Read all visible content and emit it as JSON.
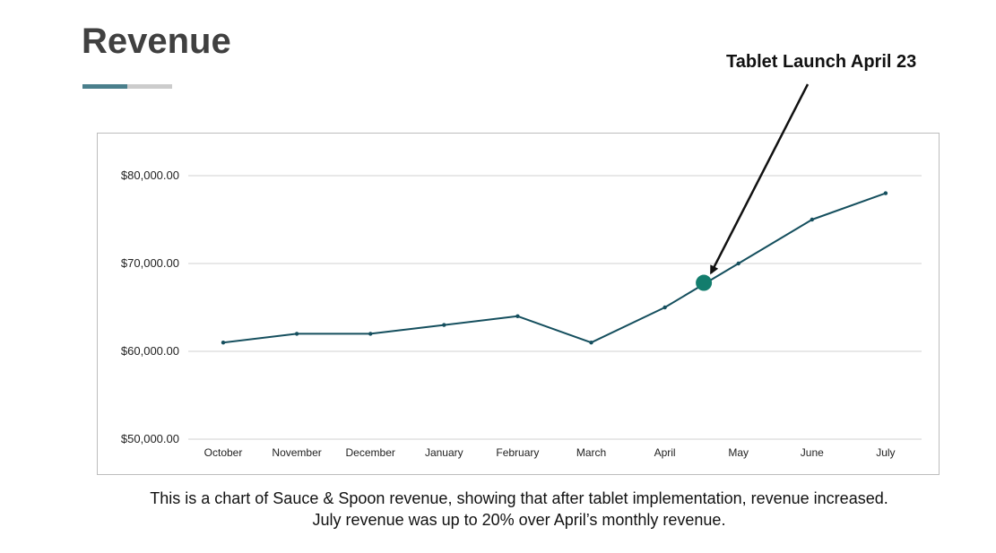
{
  "slide": {
    "title": "Revenue",
    "caption_line1": "This is a chart of Sauce & Spoon revenue, showing that after tablet implementation, revenue increased.",
    "caption_line2": "July revenue was up to 20% over April’s monthly revenue."
  },
  "colors": {
    "title": "#404040",
    "accent_rule": "#4a7f8c",
    "rule_track": "#cccccc",
    "series_line": "#154f5e",
    "highlight_marker": "#137d6d",
    "gridline": "#d0d0d0"
  },
  "chart_data": {
    "type": "line",
    "categories": [
      "October",
      "November",
      "December",
      "January",
      "February",
      "March",
      "April",
      "May",
      "June",
      "July"
    ],
    "series": [
      {
        "values": [
          61000,
          62000,
          62000,
          63000,
          64000,
          61000,
          65000,
          70000,
          75000,
          78000
        ]
      }
    ],
    "ylim": [
      50000,
      80000
    ],
    "yticks": [
      50000,
      60000,
      70000,
      80000
    ],
    "ytick_labels": [
      "$50,000.00",
      "$60,000.00",
      "$70,000.00",
      "$80,000.00"
    ],
    "grid": true,
    "annotation": {
      "label": "Tablet Launch April 23",
      "x_position": "between April and May",
      "value": 67800
    }
  }
}
